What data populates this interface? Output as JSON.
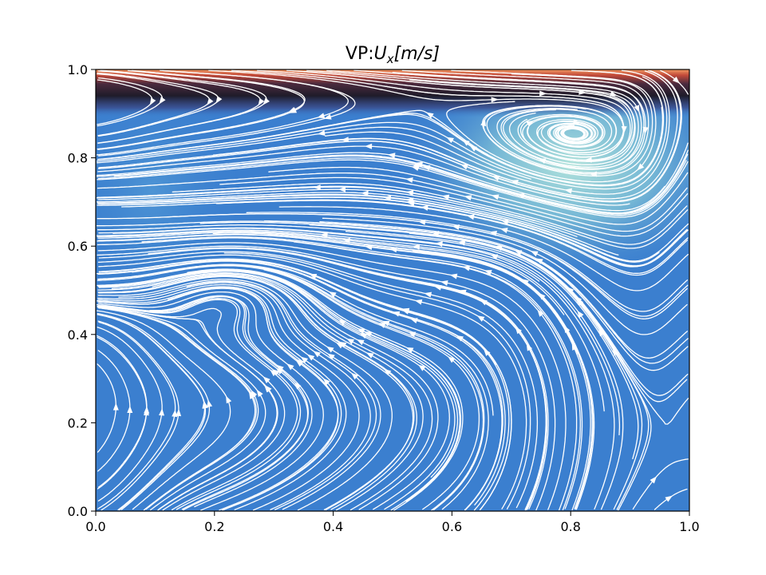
{
  "chart_data": {
    "type": "streamplot",
    "title_prefix": "VP:",
    "title_symbol": "U",
    "title_subscript": "x",
    "title_units": "[m/s]",
    "xlim": [
      0,
      1
    ],
    "ylim": [
      0,
      1
    ],
    "x_ticks": [
      "0.0",
      "0.2",
      "0.4",
      "0.6",
      "0.8",
      "1.0"
    ],
    "y_ticks": [
      "0.0",
      "0.2",
      "0.4",
      "0.6",
      "0.8",
      "1.0"
    ],
    "x_tick_values": [
      0,
      0.2,
      0.4,
      0.6,
      0.8,
      1.0
    ],
    "y_tick_values": [
      0,
      0.2,
      0.4,
      0.6,
      0.8,
      1.0
    ],
    "grid": false,
    "colormap_colors": [
      "#3b7fcf",
      "#a8e0d8",
      "#2a2238",
      "#e9744a"
    ],
    "streamline_color": "#ffffff",
    "features": {
      "primary_vortex_center": [
        0.78,
        0.8
      ],
      "secondary_vortex_center": [
        0.23,
        0.52
      ],
      "lid_velocity_band": [
        0.97,
        1.0
      ]
    }
  }
}
